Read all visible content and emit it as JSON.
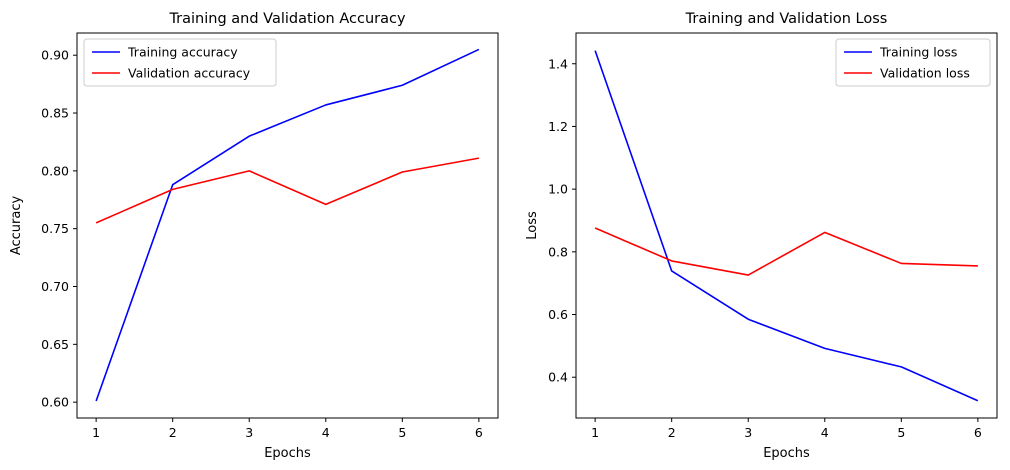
{
  "chart_data": [
    {
      "type": "line",
      "title": "Training and Validation Accuracy",
      "xlabel": "Epochs",
      "ylabel": "Accuracy",
      "x": [
        1,
        2,
        3,
        4,
        5,
        6
      ],
      "xticks": [
        "1",
        "2",
        "3",
        "4",
        "5",
        "6"
      ],
      "yticks": [
        "0.60",
        "0.65",
        "0.70",
        "0.75",
        "0.80",
        "0.85",
        "0.90"
      ],
      "ytick_values": [
        0.6,
        0.65,
        0.7,
        0.75,
        0.8,
        0.85,
        0.9
      ],
      "xlim": [
        0.75,
        6.25
      ],
      "ylim": [
        0.5863,
        0.9192
      ],
      "grid": false,
      "legend": "top-left",
      "series": [
        {
          "name": "Training accuracy",
          "color": "#0000ff",
          "values": [
            0.601,
            0.788,
            0.83,
            0.857,
            0.874,
            0.905
          ]
        },
        {
          "name": "Validation accuracy",
          "color": "#ff0000",
          "values": [
            0.755,
            0.784,
            0.8,
            0.771,
            0.799,
            0.811
          ]
        }
      ]
    },
    {
      "type": "line",
      "title": "Training and Validation Loss",
      "xlabel": "Epochs",
      "ylabel": "Loss",
      "x": [
        1,
        2,
        3,
        4,
        5,
        6
      ],
      "xticks": [
        "1",
        "2",
        "3",
        "4",
        "5",
        "6"
      ],
      "yticks": [
        "0.4",
        "0.6",
        "0.8",
        "1.0",
        "1.2",
        "1.4"
      ],
      "ytick_values": [
        0.4,
        0.6,
        0.8,
        1.0,
        1.2,
        1.4
      ],
      "xlim": [
        0.75,
        6.25
      ],
      "ylim": [
        0.2699,
        1.4981
      ],
      "grid": false,
      "legend": "top-right",
      "series": [
        {
          "name": "Training loss",
          "color": "#0000ff",
          "values": [
            1.442,
            0.739,
            0.585,
            0.492,
            0.433,
            0.325
          ]
        },
        {
          "name": "Validation loss",
          "color": "#ff0000",
          "values": [
            0.876,
            0.771,
            0.726,
            0.862,
            0.763,
            0.755
          ]
        }
      ]
    }
  ]
}
